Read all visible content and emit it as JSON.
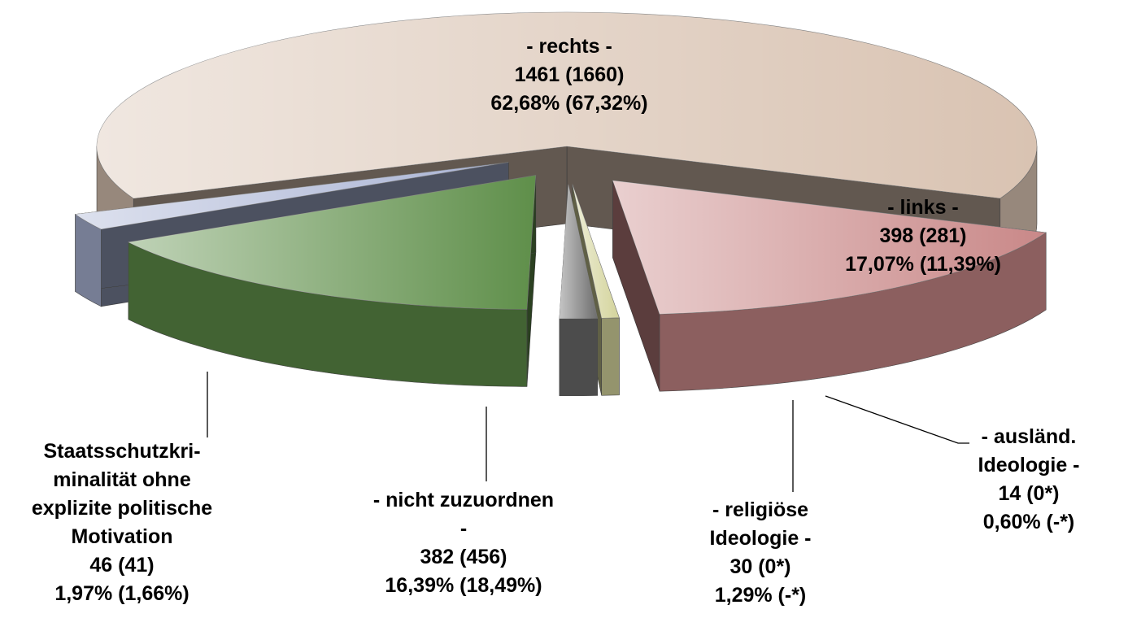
{
  "chart_data": {
    "type": "pie3d",
    "categories": [
      "- rechts -",
      "- links -",
      "- ausländ.\nIdeologie -",
      "- religiöse\nIdeologie -",
      "- nicht zuzuordnen\n-",
      "Staatsschutzkri-\nminalität ohne\nexplizite politische\nMotivation"
    ],
    "values": [
      1461,
      398,
      14,
      30,
      382,
      46
    ],
    "value_labels": [
      "1461 (1660)",
      "398 (281)",
      "14 (0*)",
      "30 (0*)",
      "382 (456)",
      "46 (41)"
    ],
    "percent_labels": [
      "62,68% (67,32%)",
      "17,07% (11,39%)",
      "0,60% (-*)",
      "1,29% (-*)",
      "16,39% (18,49%)",
      "1,97% (1,66%)"
    ],
    "colors": [
      "#d9c3b2",
      "#c98888",
      "#d4d49c",
      "#6e6e6e",
      "#5f8f4a",
      "#a9b3d4"
    ]
  }
}
